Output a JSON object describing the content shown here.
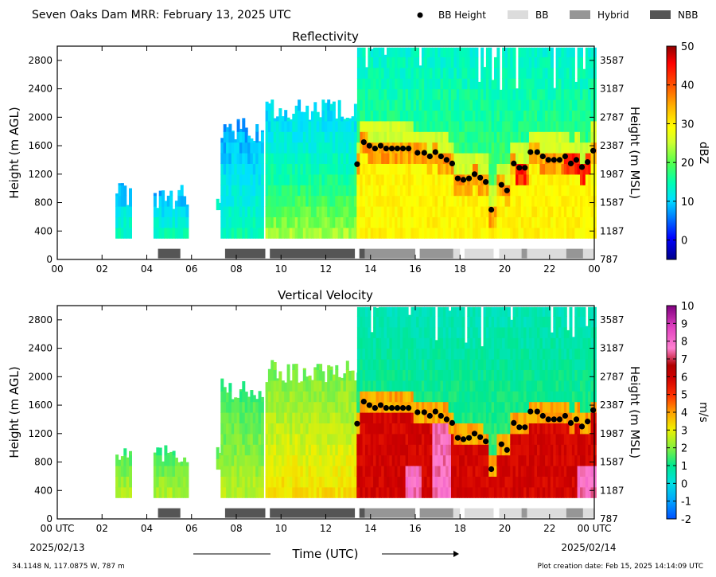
{
  "header": {
    "title": "Seven Oaks Dam MRR:  February 13, 2025 UTC",
    "legend": [
      {
        "label": "BB Height",
        "kind": "dot",
        "color": "#000000"
      },
      {
        "label": "BB",
        "kind": "bar",
        "color": "#dcdcdc"
      },
      {
        "label": "Hybrid",
        "kind": "bar",
        "color": "#969696"
      },
      {
        "label": "NBB",
        "kind": "bar",
        "color": "#555555"
      }
    ]
  },
  "footer": {
    "location": "34.1148 N, 117.0875 W, 787 m",
    "creation": "Plot creation date: Feb 15, 2025 14:14:09 UTC",
    "xlabel": "Time (UTC)",
    "start_date": "2025/02/13",
    "end_date": "2025/02/14"
  },
  "chart_data": [
    {
      "type": "heatmap",
      "title": "Reflectivity",
      "ylabel": "Height (m AGL)",
      "ylabel_right": "Height (m MSL)",
      "colorbar_label": "dBZ",
      "colorbar_ticks": [
        0,
        10,
        20,
        30,
        40,
        50
      ],
      "colorbar_range": [
        -5,
        50
      ],
      "x_ticks": [
        "00",
        "02",
        "04",
        "06",
        "08",
        "10",
        "12",
        "14",
        "16",
        "18",
        "20",
        "22",
        "00"
      ],
      "y_ticks": [
        0,
        400,
        800,
        1200,
        1600,
        2000,
        2400,
        2800
      ],
      "y_ticks_right": [
        787,
        1187,
        1587,
        1987,
        2387,
        2787,
        3187,
        3587
      ],
      "xlim_hours": [
        0,
        24
      ],
      "ylim": [
        0,
        3000
      ]
    },
    {
      "type": "heatmap",
      "title": "Vertical Velocity",
      "ylabel": "Height (m AGL)",
      "ylabel_right": "Height (m MSL)",
      "colorbar_label": "m/s",
      "colorbar_ticks": [
        -2,
        -1,
        0,
        1,
        2,
        3,
        4,
        5,
        6,
        7,
        8,
        9,
        10
      ],
      "colorbar_range": [
        -2,
        10
      ],
      "x_ticks": [
        "00 UTC",
        "02",
        "04",
        "06",
        "08",
        "10",
        "12",
        "14",
        "16",
        "18",
        "20",
        "22",
        "00 UTC"
      ],
      "y_ticks": [
        0,
        400,
        800,
        1200,
        1600,
        2000,
        2400,
        2800
      ],
      "y_ticks_right": [
        787,
        1187,
        1587,
        1987,
        2387,
        2787,
        3187,
        3587
      ],
      "xlim_hours": [
        0,
        24
      ],
      "ylim": [
        0,
        3000
      ]
    }
  ],
  "bb_height": [
    {
      "t": 13.4,
      "h": 1340
    },
    {
      "t": 13.7,
      "h": 1650
    },
    {
      "t": 13.95,
      "h": 1600
    },
    {
      "t": 14.2,
      "h": 1560
    },
    {
      "t": 14.45,
      "h": 1600
    },
    {
      "t": 14.7,
      "h": 1560
    },
    {
      "t": 14.95,
      "h": 1560
    },
    {
      "t": 15.2,
      "h": 1560
    },
    {
      "t": 15.45,
      "h": 1560
    },
    {
      "t": 15.7,
      "h": 1560
    },
    {
      "t": 16.1,
      "h": 1500
    },
    {
      "t": 16.4,
      "h": 1500
    },
    {
      "t": 16.65,
      "h": 1450
    },
    {
      "t": 16.9,
      "h": 1510
    },
    {
      "t": 17.15,
      "h": 1450
    },
    {
      "t": 17.4,
      "h": 1400
    },
    {
      "t": 17.65,
      "h": 1350
    },
    {
      "t": 17.9,
      "h": 1140
    },
    {
      "t": 18.15,
      "h": 1120
    },
    {
      "t": 18.4,
      "h": 1140
    },
    {
      "t": 18.65,
      "h": 1200
    },
    {
      "t": 18.9,
      "h": 1150
    },
    {
      "t": 19.15,
      "h": 1090
    },
    {
      "t": 19.4,
      "h": 700
    },
    {
      "t": 19.85,
      "h": 1050
    },
    {
      "t": 20.1,
      "h": 970
    },
    {
      "t": 20.4,
      "h": 1350
    },
    {
      "t": 20.65,
      "h": 1290
    },
    {
      "t": 20.9,
      "h": 1290
    },
    {
      "t": 21.15,
      "h": 1510
    },
    {
      "t": 21.45,
      "h": 1510
    },
    {
      "t": 21.7,
      "h": 1450
    },
    {
      "t": 21.95,
      "h": 1400
    },
    {
      "t": 22.2,
      "h": 1400
    },
    {
      "t": 22.45,
      "h": 1400
    },
    {
      "t": 22.7,
      "h": 1450
    },
    {
      "t": 22.95,
      "h": 1350
    },
    {
      "t": 23.2,
      "h": 1400
    },
    {
      "t": 23.45,
      "h": 1300
    },
    {
      "t": 23.7,
      "h": 1370
    },
    {
      "t": 23.95,
      "h": 1530
    }
  ],
  "precip_type": [
    {
      "start": 4.5,
      "end": 5.5,
      "type": "NBB"
    },
    {
      "start": 7.5,
      "end": 9.3,
      "type": "NBB"
    },
    {
      "start": 9.5,
      "end": 13.3,
      "type": "NBB"
    },
    {
      "start": 13.5,
      "end": 13.75,
      "type": "NBB"
    },
    {
      "start": 13.75,
      "end": 16.0,
      "type": "Hybrid"
    },
    {
      "start": 16.2,
      "end": 17.7,
      "type": "Hybrid"
    },
    {
      "start": 17.7,
      "end": 18.0,
      "type": "BB"
    },
    {
      "start": 18.2,
      "end": 19.5,
      "type": "BB"
    },
    {
      "start": 19.75,
      "end": 20.75,
      "type": "BB"
    },
    {
      "start": 20.75,
      "end": 21.0,
      "type": "Hybrid"
    },
    {
      "start": 21.0,
      "end": 22.75,
      "type": "BB"
    },
    {
      "start": 22.75,
      "end": 23.5,
      "type": "Hybrid"
    },
    {
      "start": 23.5,
      "end": 24.0,
      "type": "BB"
    }
  ],
  "echo_segments": [
    {
      "start": 2.6,
      "end": 3.3,
      "top": 1100,
      "base": 300
    },
    {
      "start": 4.3,
      "end": 5.8,
      "top": 1050,
      "base": 300
    },
    {
      "start": 7.1,
      "end": 7.3,
      "top": 1100,
      "base": 700
    },
    {
      "start": 7.3,
      "end": 9.2,
      "top": 2000,
      "base": 300
    },
    {
      "start": 9.3,
      "end": 13.4,
      "top": 2250,
      "base": 300
    },
    {
      "start": 13.4,
      "end": 24.0,
      "top": 2980,
      "base": 300
    }
  ]
}
